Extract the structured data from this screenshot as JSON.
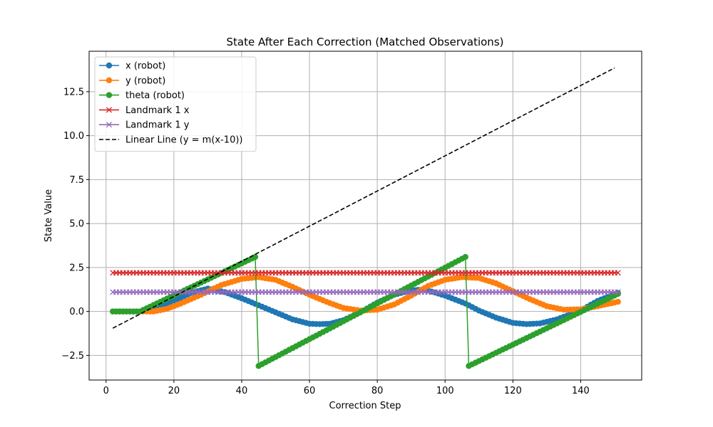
{
  "chart_data": {
    "type": "line",
    "title": "State After Each Correction (Matched Observations)",
    "xlabel": "Correction Step",
    "ylabel": "State Value",
    "xlim": [
      -5,
      158
    ],
    "ylim": [
      -3.9,
      14.8
    ],
    "xticks": [
      0,
      20,
      40,
      60,
      80,
      100,
      120,
      140
    ],
    "xtick_labels": [
      "0",
      "20",
      "40",
      "60",
      "80",
      "100",
      "120",
      "140"
    ],
    "yticks": [
      -2.5,
      0.0,
      2.5,
      5.0,
      7.5,
      10.0,
      12.5
    ],
    "ytick_labels": [
      "−2.5",
      "0.0",
      "2.5",
      "5.0",
      "7.5",
      "10.0",
      "12.5"
    ],
    "grid": true,
    "legend_position": "top-left",
    "series": [
      {
        "name": "x (robot)",
        "color": "#1f77b4",
        "marker": "circle",
        "x_start": 2,
        "x_end": 151,
        "x": [
          2,
          10,
          13,
          20,
          25,
          30,
          35,
          40,
          45,
          50,
          55,
          60,
          63,
          66,
          70,
          75,
          80,
          85,
          90,
          94,
          100,
          106,
          110,
          115,
          120,
          124,
          128,
          133,
          140,
          145,
          151
        ],
        "values": [
          0,
          0,
          0.05,
          0.6,
          1.05,
          1.3,
          1.1,
          0.75,
          0.35,
          -0.05,
          -0.45,
          -0.7,
          -0.72,
          -0.7,
          -0.5,
          -0.05,
          0.5,
          0.95,
          1.2,
          1.25,
          0.9,
          0.45,
          0.05,
          -0.35,
          -0.65,
          -0.72,
          -0.68,
          -0.45,
          0.05,
          0.6,
          1.05
        ]
      },
      {
        "name": "y (robot)",
        "color": "#ff7f0e",
        "marker": "circle",
        "x_start": 2,
        "x_end": 151,
        "x": [
          2,
          14,
          18,
          22,
          28,
          34,
          40,
          45,
          50,
          55,
          60,
          65,
          70,
          75,
          80,
          85,
          90,
          95,
          100,
          105,
          110,
          115,
          120,
          125,
          130,
          135,
          140,
          145,
          151
        ],
        "values": [
          0,
          0,
          0.15,
          0.45,
          0.95,
          1.5,
          1.85,
          1.95,
          1.8,
          1.4,
          0.95,
          0.55,
          0.2,
          0.05,
          0.1,
          0.4,
          0.9,
          1.45,
          1.8,
          1.95,
          1.9,
          1.6,
          1.15,
          0.7,
          0.3,
          0.1,
          0.12,
          0.3,
          0.55
        ]
      },
      {
        "name": "theta (robot)",
        "color": "#2ca02c",
        "marker": "circle",
        "x_start": 2,
        "x_end": 151,
        "x": [
          2,
          10,
          44,
          45,
          106,
          107,
          151
        ],
        "values": [
          0,
          0,
          3.1,
          -3.1,
          3.1,
          -3.1,
          1.0
        ]
      },
      {
        "name": "Landmark 1 x",
        "color": "#d62728",
        "marker": "x",
        "x_start": 2,
        "x_end": 151,
        "x": [
          2,
          151
        ],
        "values": [
          2.2,
          2.2
        ]
      },
      {
        "name": "Landmark 1 y",
        "color": "#9467bd",
        "marker": "x",
        "x_start": 2,
        "x_end": 151,
        "x": [
          2,
          151
        ],
        "values": [
          1.1,
          1.1
        ]
      },
      {
        "name": "Linear Line (y = m(x-10))",
        "color": "#000000",
        "marker": "none",
        "dashed": true,
        "x": [
          2,
          150
        ],
        "values": [
          -0.95,
          13.85
        ]
      }
    ]
  }
}
